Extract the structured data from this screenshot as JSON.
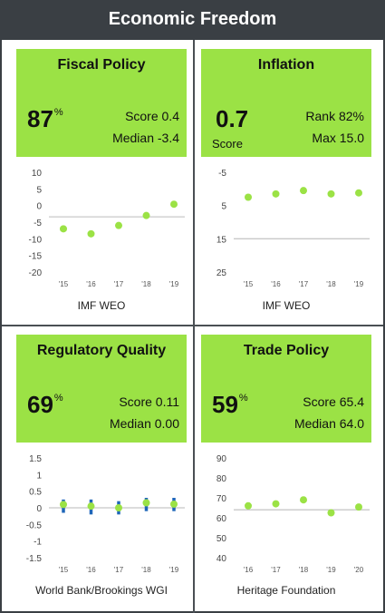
{
  "header": {
    "title": "Economic Freedom"
  },
  "panels": [
    {
      "title": "Fiscal Policy",
      "big_value": "87",
      "big_suffix": "%",
      "stat1": "Score 0.4",
      "stat2": "Median -3.4",
      "source": "IMF WEO"
    },
    {
      "title": "Inflation",
      "big_value": "0.7",
      "big_suffix": "",
      "big_sub": "Score",
      "stat1": "Rank 82%",
      "stat2": "Max 15.0",
      "source": "IMF WEO"
    },
    {
      "title": "Regulatory Quality",
      "big_value": "69",
      "big_suffix": "%",
      "stat1": "Score 0.11",
      "stat2": "Median 0.00",
      "source": "World Bank/Brookings WGI"
    },
    {
      "title": "Trade Policy",
      "big_value": "59",
      "big_suffix": "%",
      "stat1": "Score 65.4",
      "stat2": "Median 64.0",
      "source": "Heritage Foundation"
    }
  ],
  "colors": {
    "header_bg": "#3a3f44",
    "panel_green": "#9be245",
    "dot_green": "#9be245",
    "median_line": "#c8c8c8",
    "range_blue": "#1e66b8"
  },
  "chart_data": [
    {
      "type": "scatter",
      "title": "Fiscal Policy",
      "categories": [
        "'15",
        "'16",
        "'17",
        "'18",
        "'19"
      ],
      "values": [
        -7,
        -8.5,
        -6,
        -3,
        0.4
      ],
      "median": -3.4,
      "ylim": [
        -20,
        10
      ],
      "yticks": [
        "10",
        "5",
        "0",
        "-5",
        "-10",
        "-15",
        "-20"
      ],
      "ytick_values": [
        10,
        5,
        0,
        -5,
        -10,
        -15,
        -20
      ]
    },
    {
      "type": "scatter",
      "title": "Inflation",
      "categories": [
        "'15",
        "'16",
        "'17",
        "'18",
        "'19"
      ],
      "values": [
        2.5,
        1.5,
        0.5,
        1.5,
        1.2
      ],
      "median": 15,
      "ylim": [
        -5,
        25
      ],
      "y_inverted": true,
      "yticks": [
        "-5",
        "5",
        "15",
        "25"
      ],
      "ytick_values": [
        -5,
        5,
        15,
        25
      ]
    },
    {
      "type": "scatter",
      "title": "Regulatory Quality",
      "categories": [
        "'15",
        "'16",
        "'17",
        "'18",
        "'19"
      ],
      "values": [
        0.1,
        0.05,
        0.0,
        0.15,
        0.11
      ],
      "range_low": [
        -0.15,
        -0.2,
        -0.2,
        -0.1,
        -0.1
      ],
      "range_high": [
        0.25,
        0.25,
        0.2,
        0.3,
        0.3
      ],
      "median": 0.0,
      "ylim": [
        -1.5,
        1.5
      ],
      "yticks": [
        "1.5",
        "1",
        "0.5",
        "0",
        "-0.5",
        "-1",
        "-1.5"
      ],
      "ytick_values": [
        1.5,
        1,
        0.5,
        0,
        -0.5,
        -1,
        -1.5
      ]
    },
    {
      "type": "scatter",
      "title": "Trade Policy",
      "categories": [
        "'16",
        "'17",
        "'18",
        "'19",
        "'20"
      ],
      "values": [
        66,
        67,
        69,
        62.5,
        65.4
      ],
      "median": 64,
      "ylim": [
        40,
        90
      ],
      "yticks": [
        "90",
        "80",
        "70",
        "60",
        "50",
        "40"
      ],
      "ytick_values": [
        90,
        80,
        70,
        60,
        50,
        40
      ]
    }
  ]
}
